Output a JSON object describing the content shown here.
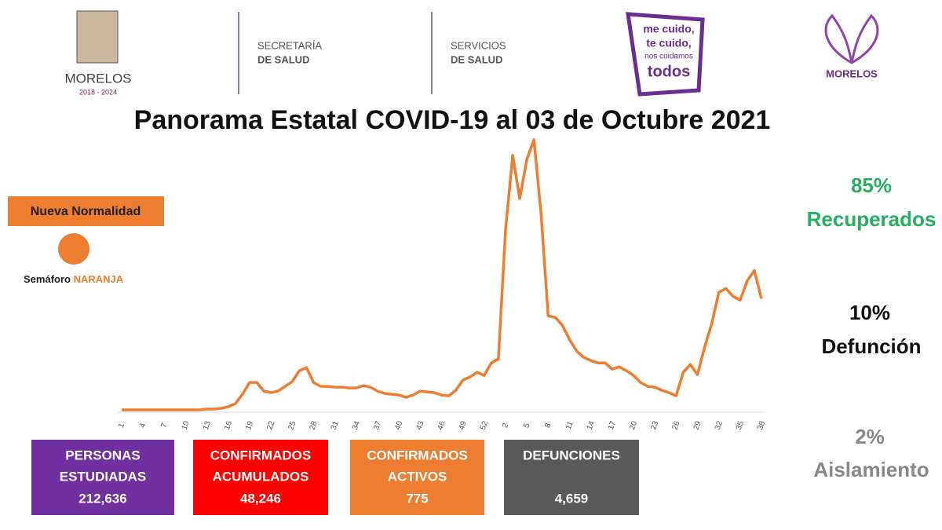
{
  "header": {
    "logo_state": "MORELOS",
    "logo_period": "2018 - 2024",
    "secretaria_line1": "SECRETARÍA",
    "secretaria_line2": "DE SALUD",
    "servicios_line1": "SERVICIOS",
    "servicios_line2": "DE SALUD",
    "campaign": [
      "me cuido,",
      "te cuido,",
      "nos cuidamos",
      "todos"
    ],
    "logo_right": "MORELOS"
  },
  "chart_data": {
    "type": "line",
    "title": "Panorama Estatal COVID-19 al 03 de Octubre 2021",
    "color": "#ed7d31",
    "categories": [
      "1",
      null,
      null,
      "4",
      null,
      null,
      "7",
      null,
      null,
      "10",
      null,
      null,
      "13",
      null,
      null,
      "16",
      null,
      null,
      "19",
      null,
      null,
      "22",
      null,
      null,
      "25",
      null,
      null,
      "28",
      null,
      null,
      "31",
      null,
      null,
      "34",
      null,
      null,
      "37",
      null,
      null,
      "40",
      null,
      null,
      "43",
      null,
      null,
      "46",
      null,
      null,
      "49",
      null,
      null,
      "52",
      null,
      null,
      "2",
      null,
      null,
      "5",
      null,
      null,
      "8",
      null,
      null,
      "11",
      null,
      null,
      "14",
      null,
      null,
      "17",
      null,
      null,
      "20",
      null,
      null,
      "23",
      null,
      null,
      "26",
      null,
      null,
      "29",
      null,
      null,
      "32",
      null,
      null,
      "35",
      null,
      null,
      "38"
    ],
    "values": [
      0,
      0,
      0,
      0,
      0,
      0,
      0,
      0,
      0,
      0,
      0,
      0,
      1,
      1,
      2,
      4,
      8,
      20,
      35,
      35,
      24,
      22,
      24,
      30,
      36,
      50,
      54,
      35,
      30,
      30,
      29,
      29,
      28,
      28,
      31,
      29,
      24,
      21,
      20,
      19,
      16,
      19,
      24,
      23,
      22,
      19,
      18,
      25,
      38,
      42,
      48,
      44,
      60,
      65,
      230,
      325,
      270,
      320,
      345,
      250,
      120,
      118,
      108,
      90,
      75,
      67,
      63,
      60,
      60,
      52,
      55,
      50,
      44,
      35,
      30,
      29,
      25,
      22,
      18,
      48,
      58,
      45,
      80,
      110,
      150,
      155,
      145,
      140,
      165,
      178,
      142
    ]
  },
  "left": {
    "phase": "Nueva Normalidad",
    "semaforo": "Semáforo",
    "semaforo_color": "NARANJA"
  },
  "right": [
    {
      "percent": "85%",
      "label": "Recuperados"
    },
    {
      "percent": "10%",
      "label": "Defunción"
    },
    {
      "percent": "2%",
      "label": "Aislamiento"
    }
  ],
  "boxes": [
    {
      "label": [
        "PERSONAS",
        "ESTUDIADAS"
      ],
      "value": "212,636"
    },
    {
      "label": [
        "CONFIRMADOS",
        "ACUMULADOS"
      ],
      "value": "48,246"
    },
    {
      "label": [
        "CONFIRMADOS",
        "ACTIVOS"
      ],
      "value": "775"
    },
    {
      "label": [
        "DEFUNCIONES"
      ],
      "value": "4,659"
    }
  ]
}
